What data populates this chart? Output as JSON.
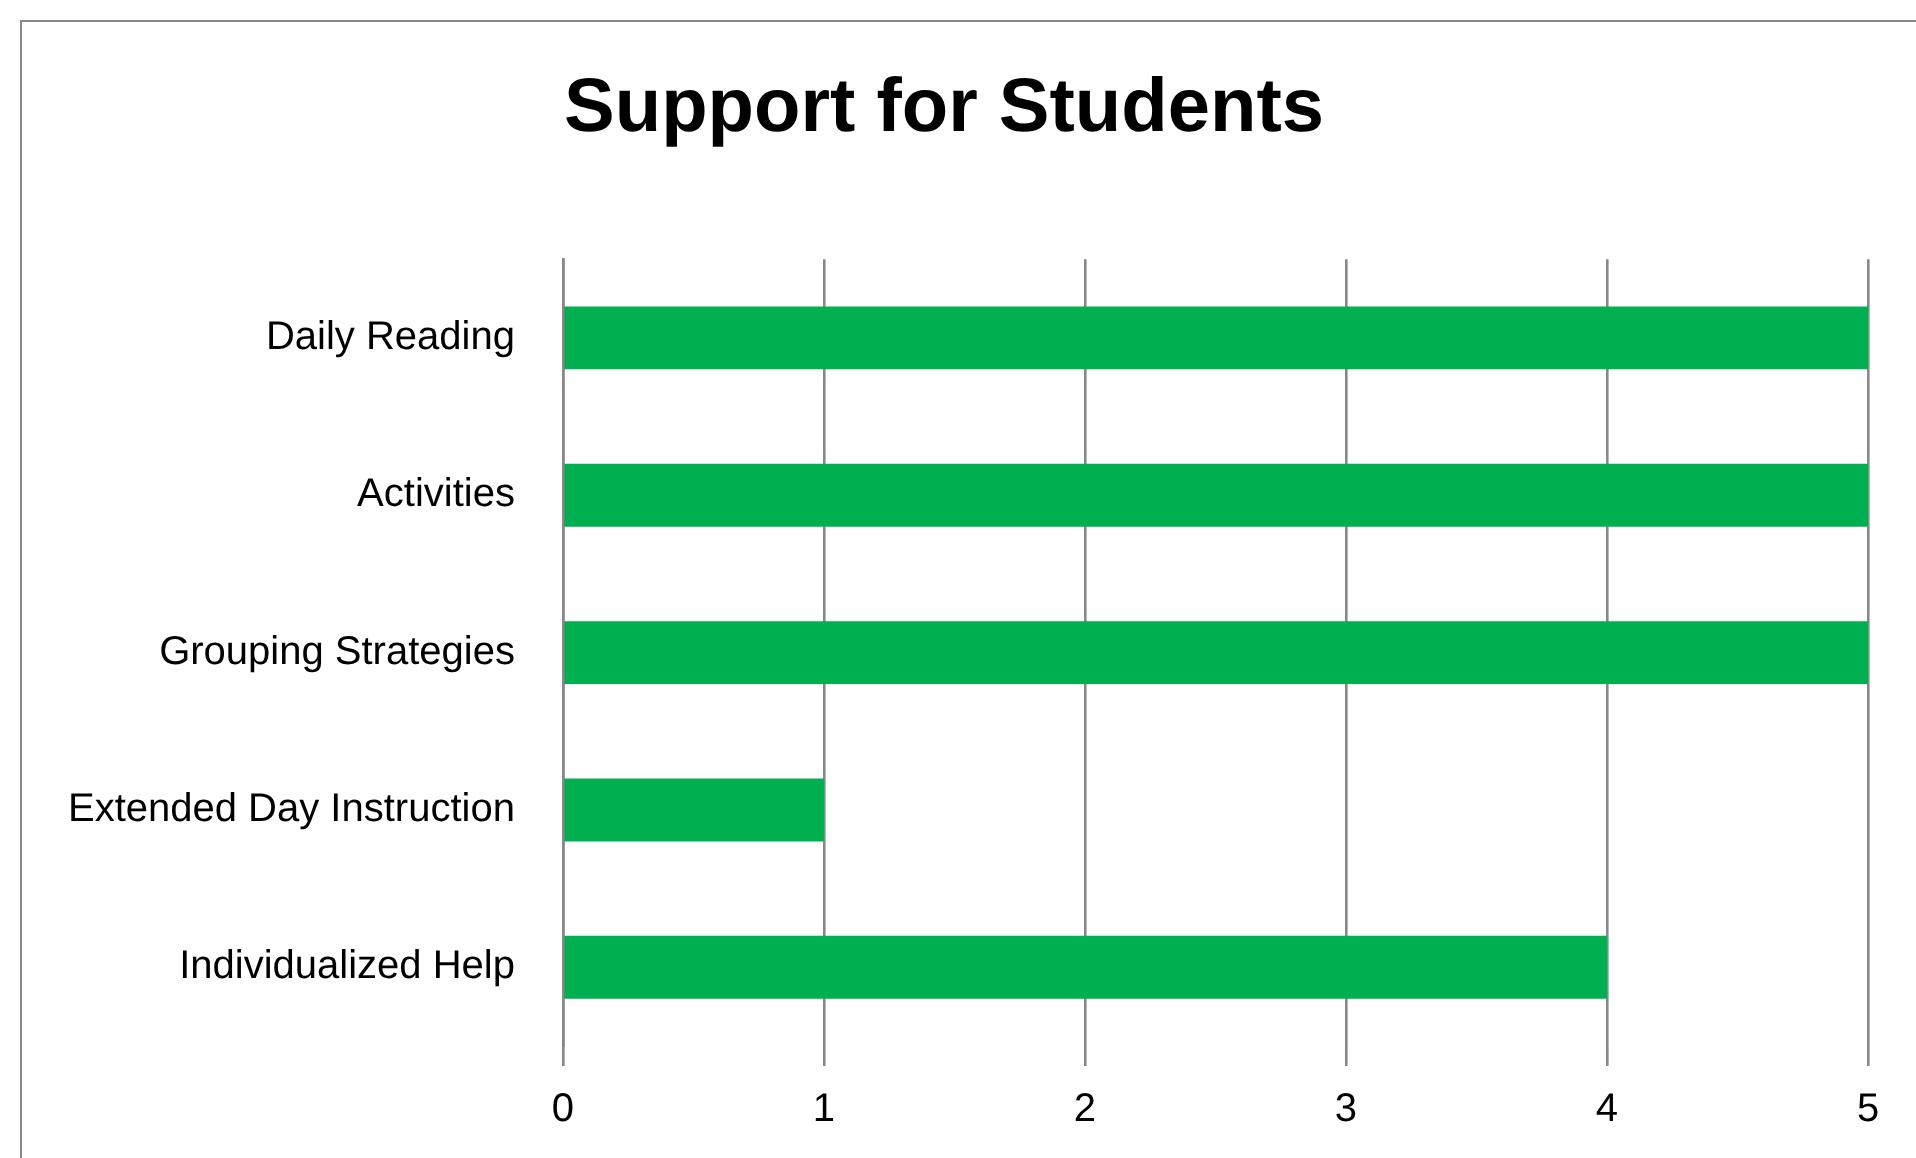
{
  "chart_data": {
    "type": "bar",
    "title": "Support for Students",
    "orientation": "horizontal",
    "categories": [
      "Daily Reading",
      "Activities",
      "Grouping Strategies",
      "Extended Day Instruction",
      "Individualized Help"
    ],
    "values": [
      5,
      5,
      5,
      1,
      4
    ],
    "color": "#00b050",
    "xlim": [
      0,
      5
    ],
    "xticks": [
      0,
      1,
      2,
      3,
      4,
      5
    ],
    "grid": "x",
    "legend": false
  }
}
